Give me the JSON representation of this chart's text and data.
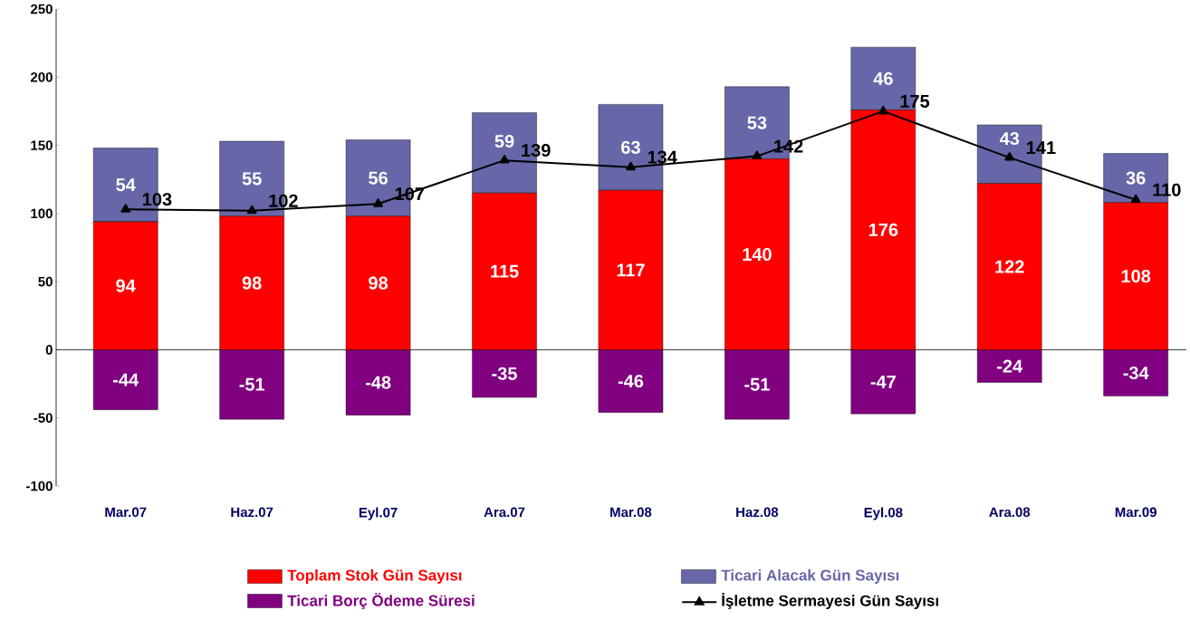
{
  "chart_data": {
    "type": "bar",
    "stacked": true,
    "data_labels": true,
    "legend": "bottom",
    "categories": [
      "Mar.07",
      "Haz.07",
      "Eyl.07",
      "Ara.07",
      "Mar.08",
      "Haz.08",
      "Eyl.08",
      "Ara.08",
      "Mar.09"
    ],
    "ylim": [
      -100,
      250
    ],
    "yticks": [
      -100,
      -50,
      0,
      50,
      100,
      150,
      200,
      250
    ],
    "series": [
      {
        "name": "Toplam Stok Gün Sayısı",
        "color": "#ff0000",
        "values": [
          94,
          98,
          98,
          115,
          117,
          140,
          176,
          122,
          108
        ]
      },
      {
        "name": "Ticari Alacak Gün Sayısı",
        "color": "#6666a8",
        "values": [
          54,
          55,
          56,
          59,
          63,
          53,
          46,
          43,
          36
        ]
      },
      {
        "name": "Ticari Borç Ödeme Süresi",
        "color": "#800080",
        "values": [
          -44,
          -51,
          -48,
          -35,
          -46,
          -51,
          -47,
          -24,
          -34
        ]
      },
      {
        "name": "İşletme Sermayesi Gün Sayısı",
        "type": "line",
        "color": "#000000",
        "marker": "triangle",
        "values": [
          103,
          102,
          107,
          139,
          134,
          142,
          175,
          141,
          110
        ]
      }
    ]
  }
}
